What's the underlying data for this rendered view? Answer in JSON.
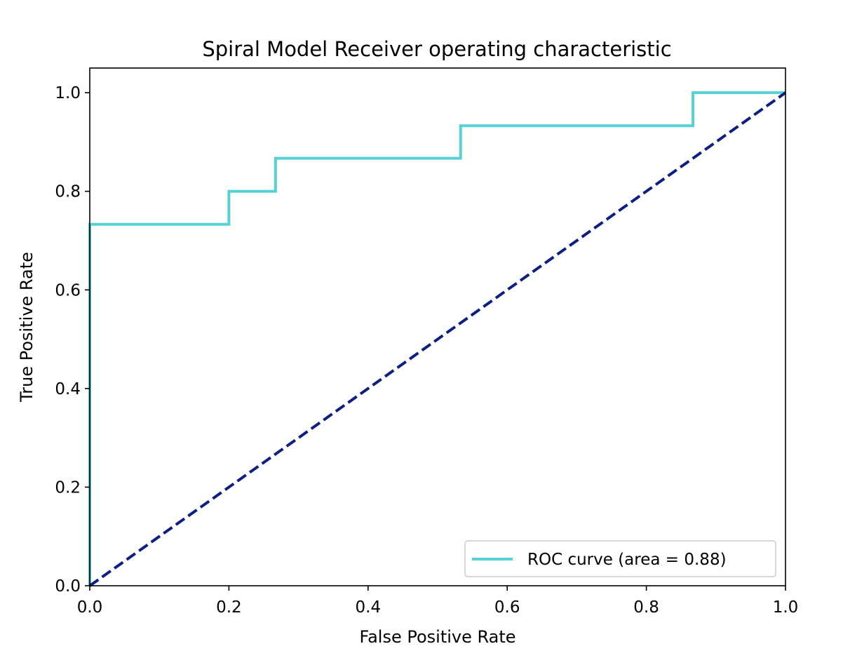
{
  "chart_data": {
    "type": "line",
    "title": "Spiral Model Receiver operating characteristic",
    "xlabel": "False Positive Rate",
    "ylabel": "True Positive Rate",
    "xlim": [
      0.0,
      1.0
    ],
    "ylim": [
      0.0,
      1.05
    ],
    "xticks": [
      "0.0",
      "0.2",
      "0.4",
      "0.6",
      "0.8",
      "1.0"
    ],
    "yticks": [
      "0.0",
      "0.2",
      "0.4",
      "0.6",
      "0.8",
      "1.0"
    ],
    "grid": false,
    "legend_position": "lower right",
    "series": [
      {
        "name": "ROC curve (area = 0.88)",
        "color": "#56d1d4",
        "style": "solid",
        "x": [
          0.0,
          0.0,
          0.2,
          0.2,
          0.267,
          0.267,
          0.533,
          0.533,
          0.867,
          0.867,
          1.0
        ],
        "y": [
          0.0,
          0.733,
          0.733,
          0.8,
          0.8,
          0.867,
          0.867,
          0.933,
          0.933,
          1.0,
          1.0
        ]
      },
      {
        "color": "#0d1f82",
        "style": "dashed",
        "x": [
          0.0,
          1.0
        ],
        "y": [
          0.0,
          1.0
        ]
      }
    ]
  }
}
